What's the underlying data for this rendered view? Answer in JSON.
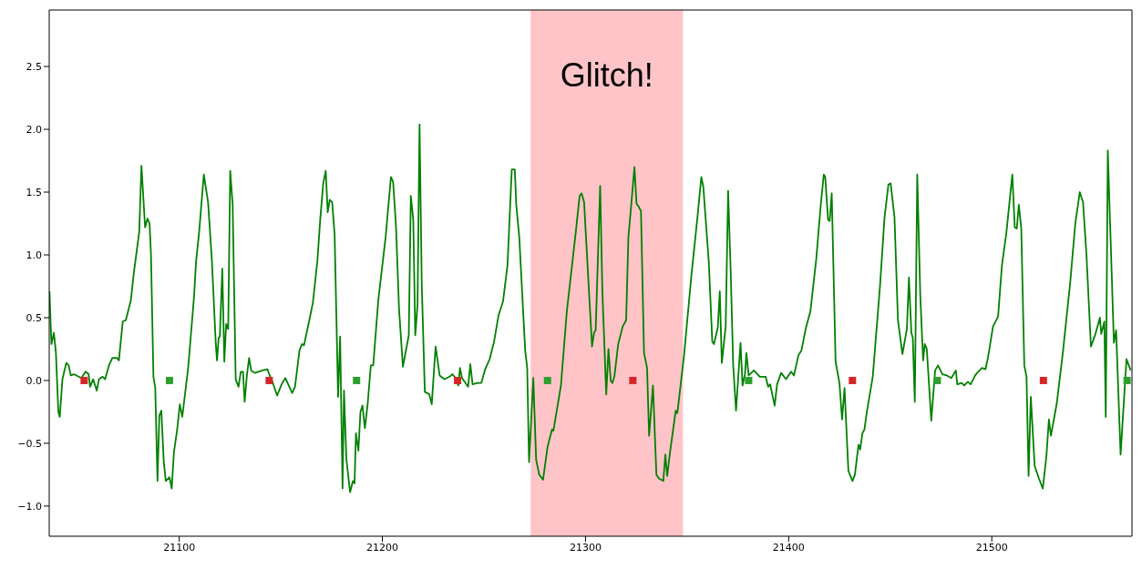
{
  "chart_data": {
    "type": "line",
    "xlim": [
      21036,
      21569
    ],
    "xticks": [
      21100,
      21200,
      21300,
      21400,
      21500
    ],
    "ylim": [
      -1.24,
      2.95
    ],
    "yticks": [
      {
        "value": -1,
        "label": "−1.0"
      },
      {
        "value": -0.5,
        "label": "−0.5"
      },
      {
        "value": 0,
        "label": "0.0"
      },
      {
        "value": 0.5,
        "label": "0.5"
      },
      {
        "value": 1,
        "label": "1.0"
      },
      {
        "value": 1.5,
        "label": "1.5"
      },
      {
        "value": 2,
        "label": "2.0"
      },
      {
        "value": 2.5,
        "label": "2.5"
      }
    ],
    "grid": false,
    "line_style": "solid",
    "bands": [
      {
        "axis": "x",
        "from": 21273,
        "to": 21348,
        "label": "Glitch!",
        "color": "#ffc4c8"
      }
    ],
    "series": [
      {
        "color": "#008000",
        "x": [
          21036.1,
          21037.1,
          21038.3,
          21039.3,
          21040.5,
          21041.2,
          21042.5,
          21044.4,
          21045.6,
          21046.6,
          21048.1,
          21051.8,
          21053.9,
          21055.4,
          21056.1,
          21057.6,
          21059.4,
          21060.5,
          21062.3,
          21063.5,
          21065.4,
          21067.1,
          21069.3,
          21070.3,
          21072.2,
          21073.7,
          21076.2,
          21077.6,
          21080.3,
          21081.4,
          21083.2,
          21084.4,
          21085.4,
          21086.1,
          21087.3,
          21088.2,
          21089.3,
          21090.2,
          21091.2,
          21092.4,
          21093.4,
          21095.2,
          21096.3,
          21097.4,
          21099.0,
          21100.3,
          21101.5,
          21104.4,
          21107.3,
          21108.3,
          21109.8,
          21112.1,
          21114.2,
          21116.1,
          21118.0,
          21118.6,
          21119.4,
          21120.0,
          21121.2,
          21122.2,
          21123.1,
          21124.1,
          21125.1,
          21126.3,
          21127.8,
          21129.2,
          21130.3,
          21131.4,
          21132.2,
          21133.3,
          21134.4,
          21135.4,
          21137.3,
          21140.9,
          21143.4,
          21144.3,
          21146.1,
          21148.2,
          21150.4,
          21152.2,
          21155.6,
          21157.0,
          21159.2,
          21160.4,
          21161.4,
          21164.3,
          21165.8,
          21168.0,
          21169.4,
          21170.9,
          21172.1,
          21173.1,
          21174.1,
          21175.3,
          21176.5,
          21178.2,
          21179.2,
          21180.4,
          21181.1,
          21182.3,
          21184.1,
          21185.5,
          21186.3,
          21187.0,
          21188.2,
          21189.2,
          21190.2,
          21191.4,
          21192.8,
          21194.3,
          21195.5,
          21198.0,
          21201.6,
          21204.2,
          21205.3,
          21206.7,
          21208.2,
          21210.1,
          21213.0,
          21214.0,
          21215.2,
          21216.2,
          21217.3,
          21218.3,
          21219.4,
          21220.9,
          21223.1,
          21224.3,
          21226.2,
          21228.2,
          21230.6,
          21233.1,
          21234.5,
          21236.0,
          21237.4,
          21238.2,
          21239.2,
          21242.2,
          21243.3,
          21244.4,
          21246.9,
          21248.7,
          21250.6,
          21252.8,
          21255.0,
          21257.2,
          21259.4,
          21261.6,
          21263.7,
          21265.2,
          21265.9,
          21267.4,
          21270.3,
          21271.3,
          21272.2,
          21274.3,
          21275.7,
          21277.2,
          21279.1,
          21281.3,
          21283.5,
          21284.2,
          21287.9,
          21290.8,
          21295.2,
          21297.1,
          21298.1,
          21299.3,
          21303.2,
          21304.2,
          21305.0,
          21307.2,
          21308.3,
          21310.2,
          21311.3,
          21312.4,
          21313.2,
          21314.2,
          21316.1,
          21318.3,
          21320.0,
          21321.1,
          21322.4,
          21324.1,
          21325.1,
          21326.3,
          21327.3,
          21328.8,
          21330.3,
          21331.3,
          21333.2,
          21334.9,
          21336.1,
          21338.3,
          21339.3,
          21340.2,
          21341.7,
          21344.4,
          21345.2,
          21348.5,
          21352.2,
          21355.1,
          21357.0,
          21358.0,
          21360.7,
          21362.4,
          21363.2,
          21365.1,
          21366.1,
          21367.1,
          21369.0,
          21370.2,
          21371.5,
          21372.7,
          21374.1,
          21376.3,
          21377.3,
          21378.5,
          21379.2,
          21380.3,
          21382.9,
          21385.8,
          21388.7,
          21389.9,
          21390.9,
          21393.1,
          21394.3,
          21396.3,
          21398.7,
          21401.2,
          21402.6,
          21404.8,
          21406.3,
          21408.5,
          21410.7,
          21413.6,
          21415.8,
          21417.3,
          21418.0,
          21419.4,
          21420.2,
          21421.2,
          21423.1,
          21425.0,
          21426.3,
          21427.5,
          21429.4,
          21431.4,
          21432.6,
          21434.4,
          21435.2,
          21436.3,
          21437.3,
          21438.5,
          21441.4,
          21445.0,
          21447.2,
          21449.1,
          21450.2,
          21452.1,
          21453.8,
          21456.0,
          21458.2,
          21459.2,
          21460.4,
          21461.1,
          21462.1,
          21463.3,
          21464.8,
          21466.2,
          21467.0,
          21468.0,
          21470.2,
          21472.1,
          21473.5,
          21475.7,
          21477.9,
          21480.1,
          21482.3,
          21483.0,
          21485.2,
          21486.4,
          21488.2,
          21489.6,
          21491.8,
          21493.3,
          21495.2,
          21496.9,
          21498.1,
          21500.6,
          21503.1,
          21505.0,
          21507.2,
          21510.1,
          21511.3,
          21512.3,
          21513.3,
          21514.5,
          21516.0,
          21517.1,
          21518.1,
          21519.2,
          21521.1,
          21523.2,
          21525.1,
          21526.9,
          21528.1,
          21529.1,
          21532.0,
          21534.9,
          21538.6,
          21541.1,
          21543.3,
          21544.9,
          21546.6,
          21548.8,
          21551.0,
          21553.2,
          21553.9,
          21555.4,
          21556.1,
          21557.1,
          21560.1,
          21561.2,
          21563.4,
          21566.3,
          21568.4
        ],
        "values": [
          0.71,
          0.29,
          0.38,
          0.22,
          -0.25,
          -0.29,
          0.01,
          0.14,
          0.12,
          0.04,
          0.05,
          0.02,
          0.07,
          0.05,
          -0.05,
          0.01,
          -0.08,
          0.01,
          0.03,
          0.01,
          0.12,
          0.18,
          0.18,
          0.16,
          0.47,
          0.48,
          0.64,
          0.85,
          1.18,
          1.71,
          1.22,
          1.29,
          1.25,
          1.0,
          0.03,
          -0.06,
          -0.8,
          -0.28,
          -0.24,
          -0.65,
          -0.8,
          -0.77,
          -0.86,
          -0.57,
          -0.39,
          -0.19,
          -0.29,
          0.1,
          0.67,
          0.95,
          1.18,
          1.64,
          1.42,
          0.95,
          0.29,
          0.16,
          0.34,
          0.35,
          0.89,
          0.15,
          0.45,
          0.41,
          1.67,
          1.4,
          0.01,
          -0.05,
          0.07,
          0.07,
          -0.17,
          0.04,
          0.18,
          0.08,
          0.06,
          0.08,
          0.09,
          0.05,
          -0.02,
          -0.12,
          -0.03,
          0.02,
          -0.1,
          -0.05,
          0.24,
          0.29,
          0.28,
          0.5,
          0.62,
          0.95,
          1.28,
          1.57,
          1.67,
          1.34,
          1.44,
          1.42,
          1.16,
          -0.13,
          0.35,
          -0.86,
          -0.08,
          -0.63,
          -0.89,
          -0.8,
          -0.82,
          -0.42,
          -0.56,
          -0.25,
          -0.2,
          -0.38,
          -0.18,
          0.12,
          0.12,
          0.64,
          1.14,
          1.62,
          1.58,
          1.23,
          0.57,
          0.11,
          0.36,
          1.47,
          1.28,
          0.36,
          0.6,
          2.04,
          0.76,
          -0.09,
          -0.11,
          -0.19,
          0.27,
          0.04,
          0.01,
          0.03,
          0.05,
          0.02,
          -0.04,
          0.1,
          0.02,
          -0.05,
          0.13,
          -0.03,
          -0.02,
          -0.02,
          0.09,
          0.17,
          0.31,
          0.52,
          0.63,
          0.92,
          1.68,
          1.68,
          1.4,
          1.14,
          0.24,
          0.1,
          -0.65,
          0.02,
          -0.63,
          -0.75,
          -0.79,
          -0.53,
          -0.39,
          -0.4,
          -0.04,
          0.55,
          1.18,
          1.47,
          1.49,
          1.42,
          0.27,
          0.38,
          0.4,
          1.55,
          0.71,
          -0.11,
          0.25,
          0.0,
          -0.02,
          0.03,
          0.29,
          0.43,
          0.48,
          1.14,
          1.38,
          1.7,
          1.41,
          1.38,
          1.35,
          0.22,
          0.1,
          -0.44,
          -0.04,
          -0.75,
          -0.78,
          -0.8,
          -0.59,
          -0.76,
          -0.56,
          -0.24,
          -0.26,
          0.2,
          0.85,
          1.3,
          1.62,
          1.54,
          0.94,
          0.31,
          0.29,
          0.42,
          0.71,
          0.14,
          0.43,
          1.51,
          0.85,
          0.12,
          -0.24,
          0.3,
          -0.04,
          0.05,
          0.22,
          0.04,
          0.08,
          0.03,
          0.03,
          -0.05,
          -0.03,
          -0.2,
          -0.03,
          0.06,
          0.01,
          0.07,
          0.04,
          0.2,
          0.24,
          0.42,
          0.55,
          0.97,
          1.4,
          1.64,
          1.62,
          1.28,
          1.27,
          1.49,
          0.15,
          -0.02,
          -0.31,
          -0.06,
          -0.72,
          -0.8,
          -0.75,
          -0.51,
          -0.55,
          -0.42,
          -0.39,
          -0.25,
          0.03,
          0.76,
          1.3,
          1.56,
          1.57,
          1.3,
          0.48,
          0.21,
          0.41,
          0.82,
          0.38,
          0.34,
          -0.17,
          1.64,
          0.67,
          0.16,
          0.29,
          0.25,
          -0.32,
          0.08,
          0.12,
          0.05,
          0.04,
          0.02,
          0.08,
          -0.03,
          -0.02,
          -0.04,
          -0.01,
          -0.03,
          0.04,
          0.07,
          0.1,
          0.09,
          0.18,
          0.43,
          0.51,
          0.92,
          1.18,
          1.64,
          1.22,
          1.21,
          1.4,
          1.21,
          0.12,
          0.03,
          -0.76,
          -0.13,
          -0.68,
          -0.78,
          -0.86,
          -0.6,
          -0.31,
          -0.44,
          -0.18,
          0.21,
          0.78,
          1.25,
          1.5,
          1.42,
          1.0,
          0.27,
          0.37,
          0.5,
          0.37,
          0.47,
          -0.29,
          1.83,
          0.3,
          0.4,
          -0.59,
          0.17,
          0.08
        ]
      },
      {
        "type": "scatter",
        "color": "#d62728",
        "marker": "square",
        "x": [
          21053.2,
          21144.3,
          21237,
          21323.3,
          21431.4,
          21525.4
        ],
        "values": [
          0,
          0,
          0,
          0,
          0,
          0
        ]
      },
      {
        "type": "scatter",
        "color": "#2ca02c",
        "marker": "square",
        "x": [
          21095.2,
          21187.3,
          21281.3,
          21380.3,
          21473.2,
          21566.6
        ],
        "values": [
          0,
          0,
          0,
          0,
          0,
          0
        ]
      }
    ]
  }
}
